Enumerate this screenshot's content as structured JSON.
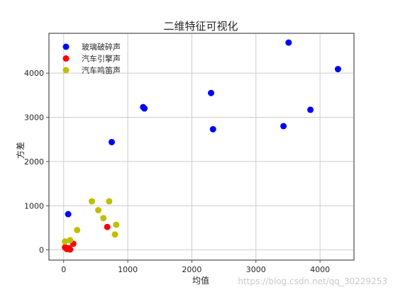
{
  "chart_data": {
    "type": "scatter",
    "title": "二维特征可视化",
    "xlabel": "均值",
    "ylabel": "方差",
    "xlim": [
      -230,
      4530
    ],
    "ylim": [
      -230,
      4900
    ],
    "xticks": [
      0,
      1000,
      2000,
      3000,
      4000
    ],
    "yticks": [
      0,
      1000,
      2000,
      3000,
      4000
    ],
    "xtick_labels": [
      "0",
      "1000",
      "2000",
      "3000",
      "4000"
    ],
    "ytick_labels": [
      "0",
      "1000",
      "2000",
      "3000",
      "4000"
    ],
    "grid": true,
    "legend_position": "upper-left",
    "series": [
      {
        "name": "玻璃破碎声",
        "color": "#0000ff",
        "points": [
          {
            "x": 70,
            "y": 810
          },
          {
            "x": 750,
            "y": 2440
          },
          {
            "x": 1240,
            "y": 3230
          },
          {
            "x": 1260,
            "y": 3200
          },
          {
            "x": 2300,
            "y": 3550
          },
          {
            "x": 2330,
            "y": 2730
          },
          {
            "x": 3430,
            "y": 2800
          },
          {
            "x": 3510,
            "y": 4690
          },
          {
            "x": 3850,
            "y": 3170
          },
          {
            "x": 4280,
            "y": 4090
          }
        ]
      },
      {
        "name": "汽车引擎声",
        "color": "#ff0000",
        "points": [
          {
            "x": 20,
            "y": 60
          },
          {
            "x": 50,
            "y": 20
          },
          {
            "x": 80,
            "y": 40
          },
          {
            "x": 100,
            "y": 10
          },
          {
            "x": 150,
            "y": 140
          },
          {
            "x": 680,
            "y": 520
          }
        ]
      },
      {
        "name": "汽车鸣笛声",
        "color": "#bfbf00",
        "points": [
          {
            "x": 20,
            "y": 190
          },
          {
            "x": 100,
            "y": 220
          },
          {
            "x": 210,
            "y": 450
          },
          {
            "x": 440,
            "y": 1100
          },
          {
            "x": 540,
            "y": 900
          },
          {
            "x": 620,
            "y": 720
          },
          {
            "x": 710,
            "y": 1100
          },
          {
            "x": 800,
            "y": 350
          },
          {
            "x": 820,
            "y": 570
          }
        ]
      }
    ]
  },
  "watermark": "https://blog.csdn.net/qq_30229253"
}
